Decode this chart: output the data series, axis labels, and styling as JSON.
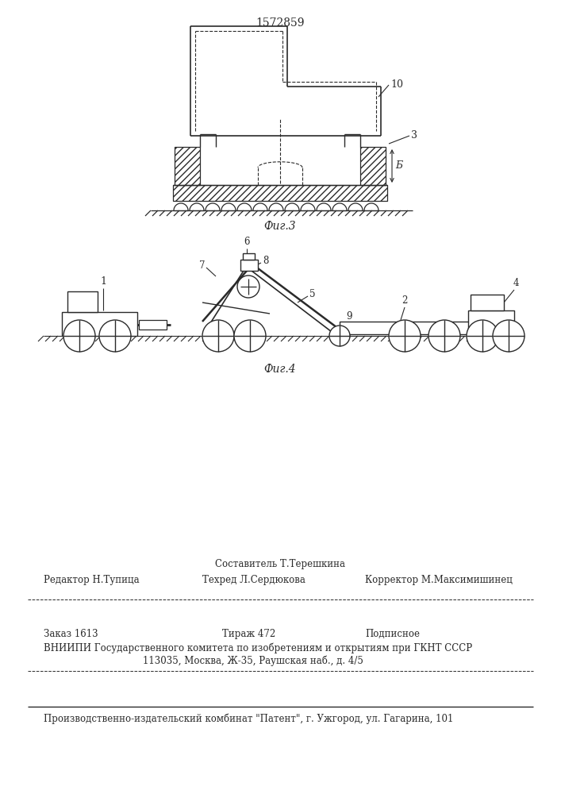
{
  "patent_number": "1572859",
  "fig3_caption": "Фиг.3",
  "fig4_caption": "Фиг.4",
  "label_10": "10",
  "label_3": "3",
  "label_b": "Б",
  "label_1": "1",
  "label_2": "2",
  "label_4": "4",
  "label_5": "5",
  "label_6": "6",
  "label_7": "7",
  "label_8": "8",
  "label_9": "9",
  "footer_line1": "Составитель Т.Терешкина",
  "footer_line2_left": "Редактор Н.Тупица",
  "footer_line2_mid": "Техред Л.Сердюкова",
  "footer_line2_right": "Корректор М.Максимишинец",
  "footer_line3_left": "Заказ 1613",
  "footer_line3_mid": "Тираж 472",
  "footer_line3_right": "Подписное",
  "footer_line4": "ВНИИПИ Государственного комитета по изобретениям и открытиям при ГКНТ СССР",
  "footer_line5": "113035, Москва, Ж-35, Раушская наб., д. 4/5",
  "footer_line6": "Производственно-издательский комбинат \"Патент\", г. Ужгород, ул. Гагарина, 101",
  "bg_color": "#ffffff",
  "line_color": "#2a2a2a"
}
